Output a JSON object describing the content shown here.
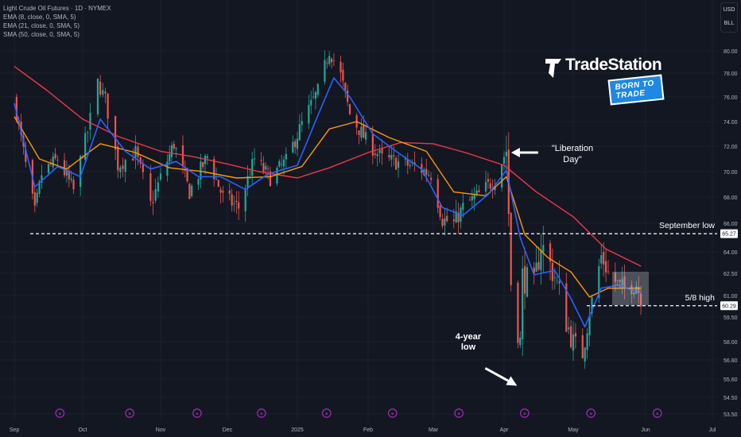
{
  "legend": {
    "title": "Light Crude Oil Futures · 1D · NYMEX",
    "lines": [
      "EMA (8, close, 0, SMA, 5)",
      "EMA (21, close, 0, SMA, 5)",
      "SMA (50, close, 0, SMA, 5)"
    ]
  },
  "unit": {
    "currency": "USD",
    "unit": "BLL"
  },
  "brand": {
    "name": "TradeStation",
    "tagline": "BORN TO TRADE"
  },
  "colors": {
    "background": "#131722",
    "up": "#26a69a",
    "down": "#ef5350",
    "ema8": "#2962ff",
    "ema21": "#ff9800",
    "sma50": "#f23645"
  },
  "chart_data": {
    "type": "candlestick",
    "y_ticks": [
      80.0,
      78.0,
      76.0,
      74.0,
      72.0,
      70.0,
      68.0,
      66.0,
      64.0,
      62.5,
      61.0,
      59.5,
      58.0,
      56.8,
      55.6,
      54.5,
      53.5
    ],
    "ylim": [
      53.0,
      81.5
    ],
    "x_ticks": [
      "Sep",
      "Oct",
      "Nov",
      "Dec",
      "2025",
      "Feb",
      "Mar",
      "Apr",
      "May",
      "Jun",
      "Jul"
    ],
    "price_labels": [
      {
        "value": 65.27,
        "label": "65.27"
      },
      {
        "value": 60.29,
        "label": "60.29"
      }
    ],
    "hlines": [
      {
        "value": 65.27,
        "label": "September low"
      },
      {
        "value": 60.29,
        "label": "5/8 high"
      }
    ],
    "annotations": [
      {
        "text_lines": [
          "\"Liberation",
          "Day\""
        ],
        "date": "2025-04-02",
        "value": 71.5
      },
      {
        "text_lines": [
          "4-year",
          "low"
        ],
        "date": "2025-04-07",
        "value": 55.1
      }
    ],
    "series": {
      "close_path": [
        [
          "2024-09-01",
          75.8
        ],
        [
          "2024-09-06",
          70.5
        ],
        [
          "2024-09-10",
          66.8
        ],
        [
          "2024-09-13",
          69.8
        ],
        [
          "2024-09-20",
          71.0
        ],
        [
          "2024-09-27",
          68.5
        ],
        [
          "2024-10-03",
          73.2
        ],
        [
          "2024-10-07",
          77.2
        ],
        [
          "2024-10-10",
          75.8
        ],
        [
          "2024-10-15",
          70.5
        ],
        [
          "2024-10-22",
          71.5
        ],
        [
          "2024-10-28",
          67.4
        ],
        [
          "2024-11-01",
          69.5
        ],
        [
          "2024-11-07",
          72.2
        ],
        [
          "2024-11-14",
          68.4
        ],
        [
          "2024-11-22",
          71.2
        ],
        [
          "2024-11-29",
          68.0
        ],
        [
          "2024-12-06",
          67.2
        ],
        [
          "2024-12-13",
          71.0
        ],
        [
          "2024-12-20",
          69.5
        ],
        [
          "2024-12-27",
          70.8
        ],
        [
          "2025-01-03",
          73.8
        ],
        [
          "2025-01-10",
          76.5
        ],
        [
          "2025-01-15",
          80.0
        ],
        [
          "2025-01-20",
          77.8
        ],
        [
          "2025-01-24",
          74.6
        ],
        [
          "2025-01-31",
          72.5
        ],
        [
          "2025-02-07",
          71.0
        ],
        [
          "2025-02-14",
          70.7
        ],
        [
          "2025-02-21",
          70.4
        ],
        [
          "2025-02-28",
          69.8
        ],
        [
          "2025-03-05",
          66.3
        ],
        [
          "2025-03-10",
          66.0
        ],
        [
          "2025-03-14",
          67.2
        ],
        [
          "2025-03-21",
          68.2
        ],
        [
          "2025-03-28",
          69.4
        ],
        [
          "2025-04-02",
          71.7
        ],
        [
          "2025-04-04",
          61.9
        ],
        [
          "2025-04-08",
          57.9
        ],
        [
          "2025-04-09",
          62.3
        ],
        [
          "2025-04-14",
          61.5
        ],
        [
          "2025-04-17",
          64.6
        ],
        [
          "2025-04-23",
          62.3
        ],
        [
          "2025-04-30",
          58.2
        ],
        [
          "2025-05-05",
          57.2
        ],
        [
          "2025-05-08",
          59.9
        ],
        [
          "2025-05-13",
          63.7
        ],
        [
          "2025-05-16",
          62.5
        ],
        [
          "2025-05-21",
          61.6
        ],
        [
          "2025-05-23",
          61.5
        ],
        [
          "2025-05-28",
          61.8
        ],
        [
          "2025-05-30",
          60.8
        ]
      ],
      "ema8": [
        [
          "2024-09-01",
          75.5
        ],
        [
          "2024-09-10",
          68.8
        ],
        [
          "2024-09-20",
          70.4
        ],
        [
          "2024-09-30",
          69.6
        ],
        [
          "2024-10-08",
          74.2
        ],
        [
          "2024-10-18",
          71.6
        ],
        [
          "2024-10-28",
          70.2
        ],
        [
          "2024-11-08",
          70.8
        ],
        [
          "2024-11-18",
          69.6
        ],
        [
          "2024-11-28",
          69.6
        ],
        [
          "2024-12-09",
          68.6
        ],
        [
          "2024-12-19",
          69.8
        ],
        [
          "2025-01-01",
          70.5
        ],
        [
          "2025-01-10",
          74.5
        ],
        [
          "2025-01-17",
          77.6
        ],
        [
          "2025-01-24",
          76.0
        ],
        [
          "2025-02-03",
          73.0
        ],
        [
          "2025-02-13",
          71.6
        ],
        [
          "2025-02-24",
          70.2
        ],
        [
          "2025-03-05",
          67.2
        ],
        [
          "2025-03-14",
          66.6
        ],
        [
          "2025-03-25",
          68.2
        ],
        [
          "2025-04-02",
          70.1
        ],
        [
          "2025-04-08",
          65.0
        ],
        [
          "2025-04-14",
          62.4
        ],
        [
          "2025-04-23",
          62.7
        ],
        [
          "2025-04-30",
          60.8
        ],
        [
          "2025-05-06",
          58.9
        ],
        [
          "2025-05-13",
          61.5
        ],
        [
          "2025-05-20",
          61.7
        ],
        [
          "2025-05-30",
          61.2
        ]
      ],
      "ema21": [
        [
          "2024-09-01",
          74.4
        ],
        [
          "2024-09-12",
          71.0
        ],
        [
          "2024-09-24",
          70.2
        ],
        [
          "2024-10-08",
          72.2
        ],
        [
          "2024-10-22",
          71.5
        ],
        [
          "2024-11-05",
          70.3
        ],
        [
          "2024-11-20",
          70.0
        ],
        [
          "2024-12-05",
          69.5
        ],
        [
          "2024-12-20",
          69.6
        ],
        [
          "2025-01-03",
          70.4
        ],
        [
          "2025-01-15",
          73.4
        ],
        [
          "2025-01-27",
          74.0
        ],
        [
          "2025-02-10",
          72.7
        ],
        [
          "2025-02-26",
          71.6
        ],
        [
          "2025-03-10",
          68.4
        ],
        [
          "2025-03-24",
          68.1
        ],
        [
          "2025-04-02",
          69.6
        ],
        [
          "2025-04-10",
          65.2
        ],
        [
          "2025-04-20",
          63.6
        ],
        [
          "2025-04-30",
          62.6
        ],
        [
          "2025-05-08",
          60.9
        ],
        [
          "2025-05-16",
          61.5
        ],
        [
          "2025-05-30",
          61.5
        ]
      ],
      "sma50": [
        [
          "2024-09-01",
          78.6
        ],
        [
          "2024-09-15",
          76.6
        ],
        [
          "2024-10-01",
          74.2
        ],
        [
          "2024-10-15",
          72.8
        ],
        [
          "2024-11-01",
          71.6
        ],
        [
          "2024-11-15",
          71.2
        ],
        [
          "2024-12-01",
          70.6
        ],
        [
          "2024-12-15",
          70.0
        ],
        [
          "2025-01-01",
          69.5
        ],
        [
          "2025-01-15",
          70.3
        ],
        [
          "2025-02-01",
          71.5
        ],
        [
          "2025-02-15",
          72.3
        ],
        [
          "2025-03-01",
          72.2
        ],
        [
          "2025-03-15",
          71.5
        ],
        [
          "2025-04-01",
          70.5
        ],
        [
          "2025-04-15",
          68.4
        ],
        [
          "2025-05-01",
          66.5
        ],
        [
          "2025-05-15",
          64.2
        ],
        [
          "2025-05-30",
          63.0
        ]
      ]
    }
  }
}
